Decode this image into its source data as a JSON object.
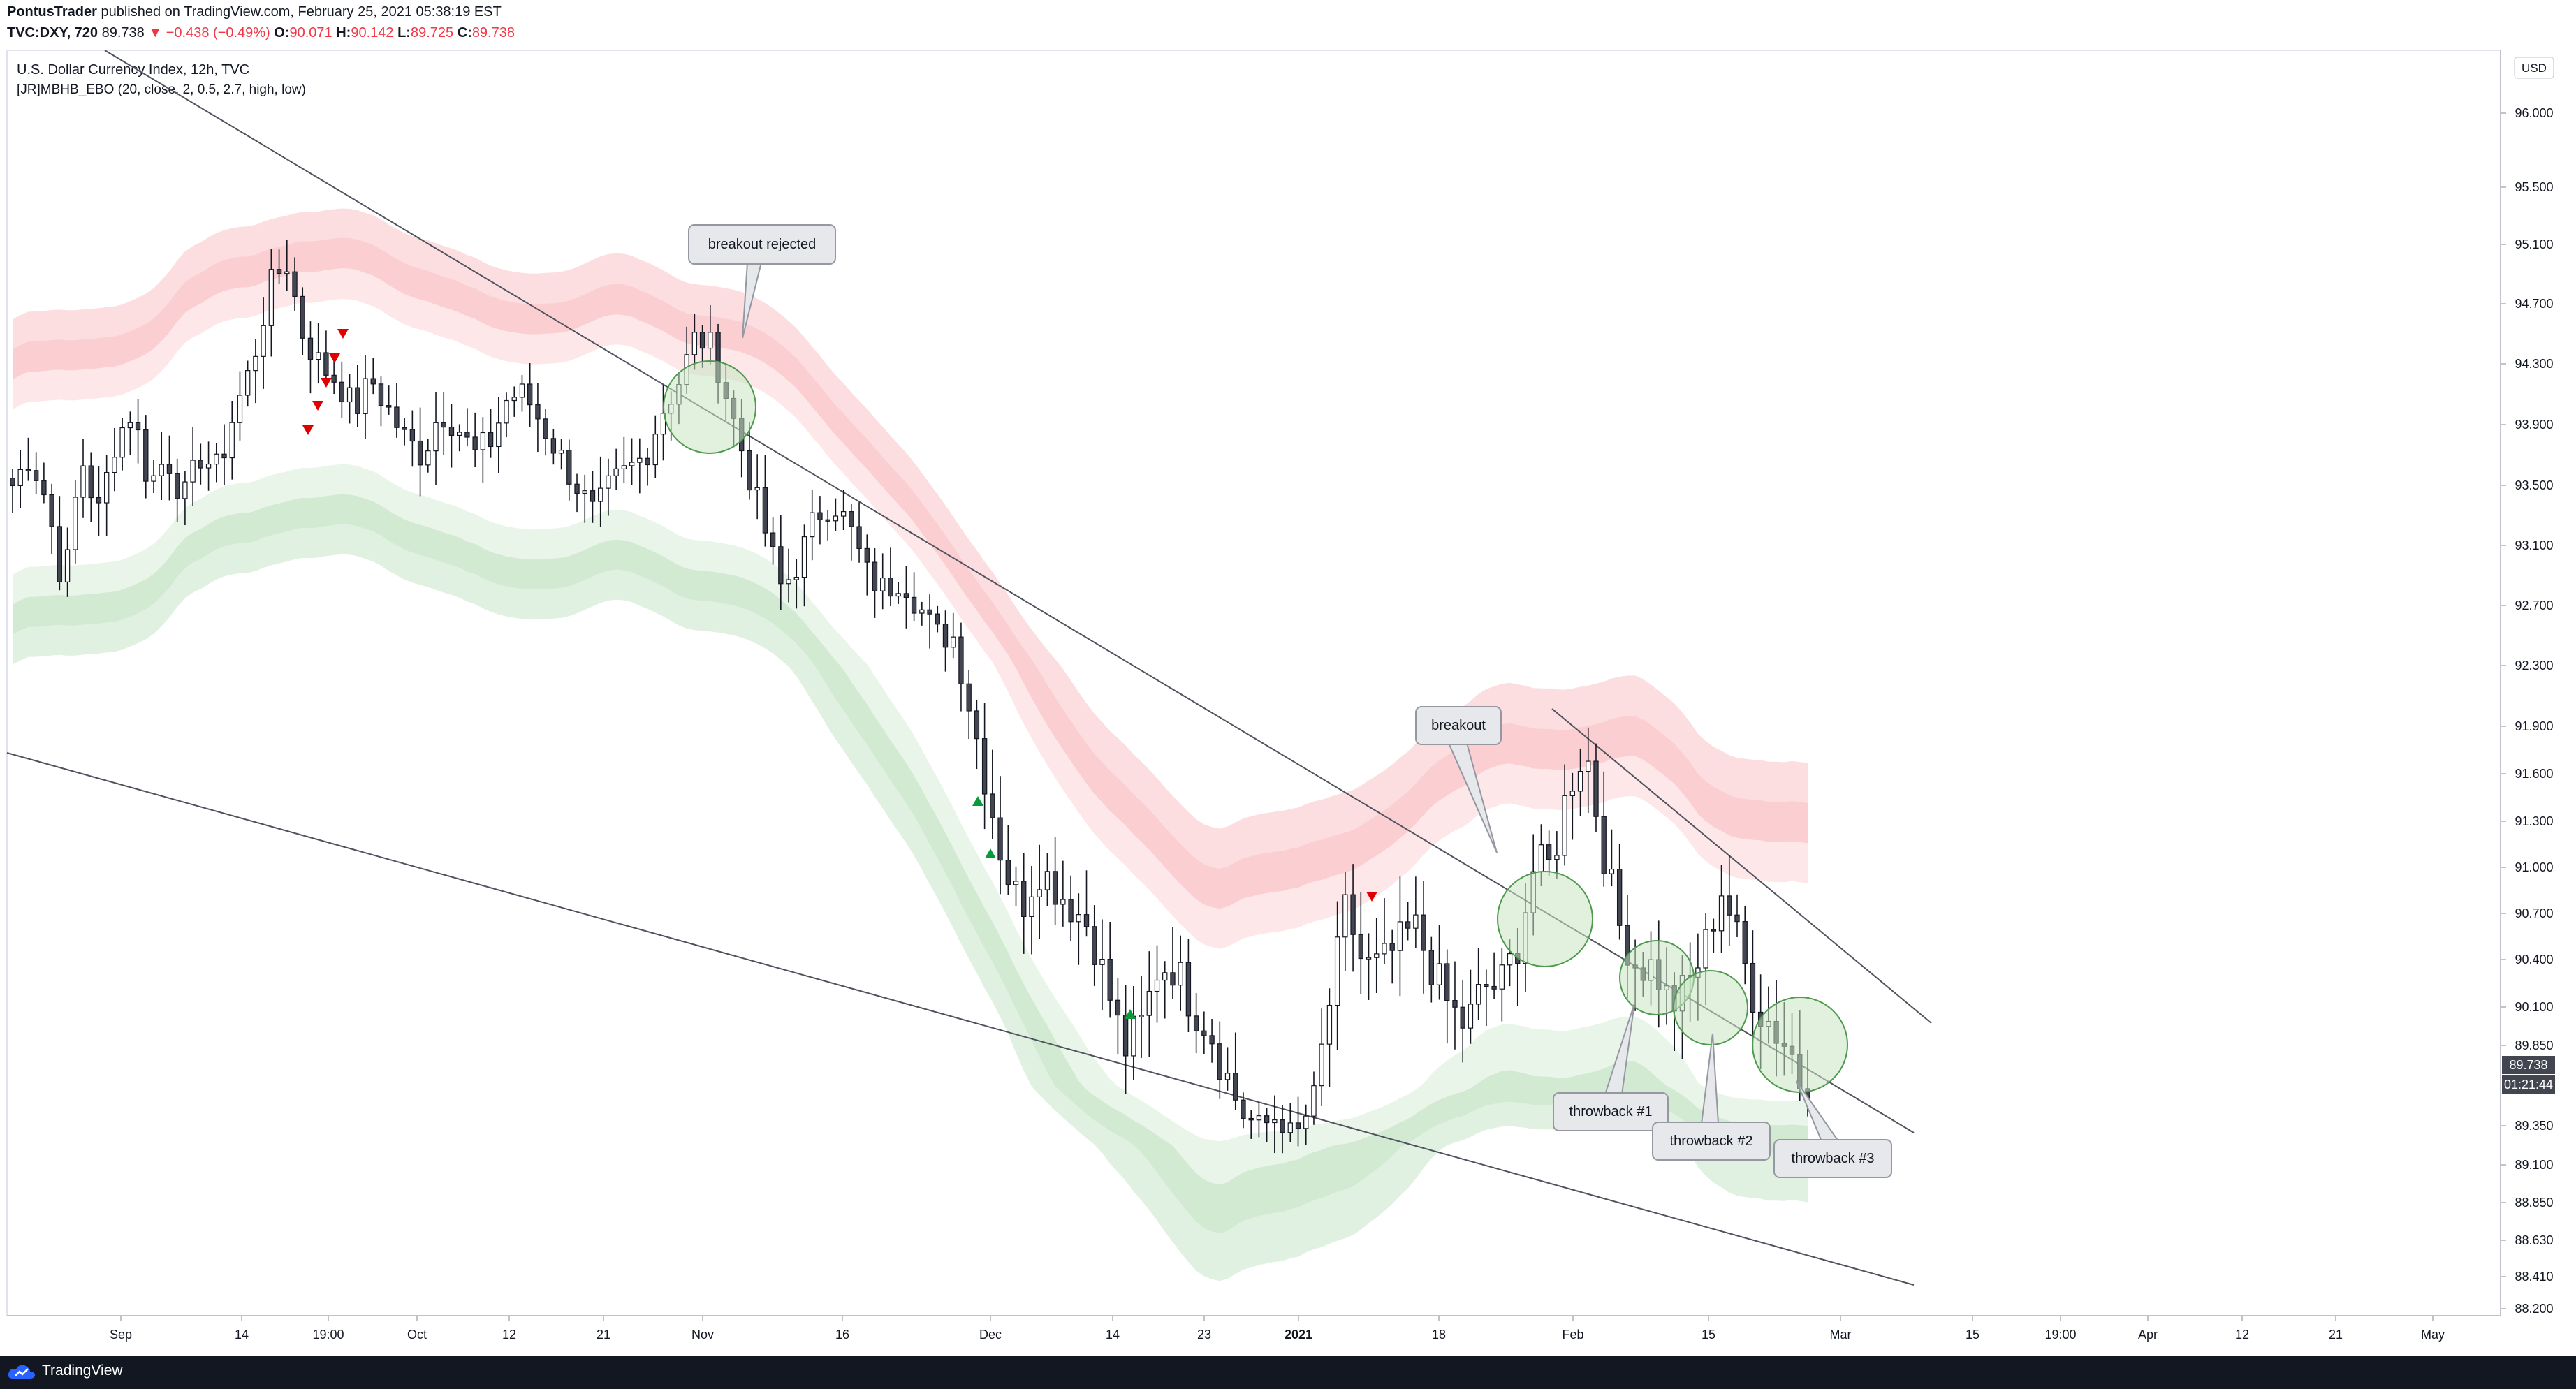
{
  "header": {
    "author": "PontusTrader",
    "published": "published on TradingView.com, February 25, 2021 05:38:19 EST",
    "ticker": "TVC:DXY, 720",
    "last": "89.738",
    "change": "−0.438 (−0.49%)",
    "open_label": "O:",
    "open": "90.071",
    "high_label": "H:",
    "high": "90.142",
    "low_label": "L:",
    "low": "89.725",
    "close_label": "C:",
    "close": "89.738"
  },
  "legend": {
    "symbol": "U.S. Dollar Currency Index, 12h, TVC",
    "indicator": "[JR]MBHB_EBO (20, close, 2, 0.5, 2.7, high, low)"
  },
  "footer": {
    "brand": "TradingView"
  },
  "colors": {
    "up": "#ffffff",
    "down": "#434651",
    "band_upper": "#f7a1a6",
    "band_lower": "#a8d8a8",
    "circle": "#c8e6c3",
    "accent": "#f23645",
    "green_arrow": "#0a9a3a"
  },
  "chart_data": {
    "type": "candlestick",
    "title": "U.S. Dollar Currency Index, 12h, TVC",
    "currency": "USD",
    "last_price": "89.738",
    "countdown": "01:21:44",
    "y_ticks": [
      "96.000",
      "95.500",
      "95.100",
      "94.700",
      "94.300",
      "93.900",
      "93.500",
      "93.100",
      "92.700",
      "92.300",
      "91.900",
      "91.600",
      "91.300",
      "91.000",
      "90.700",
      "90.400",
      "90.100",
      "89.850",
      "89.350",
      "89.100",
      "88.850",
      "88.630",
      "88.410",
      "88.200"
    ],
    "x_ticks": [
      "Sep",
      "14",
      "19:00",
      "Oct",
      "12",
      "21",
      "Nov",
      "16",
      "Dec",
      "14",
      "23",
      "2021",
      "18",
      "Feb",
      "15",
      "Mar",
      "15",
      "19:00",
      "Apr",
      "12",
      "21",
      "May"
    ],
    "annotations": [
      "breakout rejected",
      "breakout",
      "throwback #1",
      "throwback #2",
      "throwback #3"
    ],
    "close_path": [
      93.1,
      93.3,
      93.0,
      92.4,
      93.3,
      92.9,
      93.4,
      93.6,
      93.1,
      93.3,
      93.0,
      93.3,
      93.2,
      93.6,
      93.9,
      94.4,
      94.6,
      94.1,
      93.9,
      93.8,
      93.6,
      93.8,
      93.6,
      93.4,
      93.3,
      93.6,
      93.5,
      93.3,
      93.4,
      93.7,
      93.7,
      93.5,
      93.3,
      93.1,
      92.9,
      93.1,
      93.2,
      93.3,
      93.6,
      93.8,
      94.1,
      94.0,
      93.6,
      93.2,
      92.8,
      92.4,
      92.6,
      92.9,
      93.0,
      92.8,
      92.5,
      92.4,
      92.5,
      92.3,
      92.1,
      92.1,
      91.7,
      91.3,
      90.9,
      90.7,
      90.9,
      90.8,
      90.7,
      90.6,
      90.3,
      90.0,
      90.1,
      90.4,
      90.4,
      90.2,
      90.1,
      89.9,
      89.6,
      89.5,
      89.6,
      89.4,
      89.7,
      90.2,
      90.7,
      90.4,
      90.4,
      90.5,
      90.6,
      90.4,
      90.2,
      90.1,
      90.3,
      90.3,
      90.5,
      90.9,
      90.9,
      91.3,
      91.5,
      91.0,
      90.6,
      90.4,
      90.4,
      90.2,
      90.3,
      90.5,
      90.8,
      90.5,
      90.2,
      90.1,
      90.0,
      89.74
    ]
  }
}
